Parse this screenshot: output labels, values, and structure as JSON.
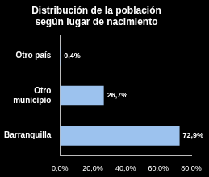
{
  "chart_data": {
    "type": "bar",
    "orientation": "horizontal",
    "title": "Distribución de la población según lugar de nacimiento",
    "categories": [
      "Otro país",
      "Otro municipio",
      "Barranquilla"
    ],
    "values": [
      0.4,
      26.7,
      72.9
    ],
    "value_labels": [
      "0,4%",
      "26,7%",
      "72,9%"
    ],
    "data_labels": true,
    "color": "#9cc2ee",
    "xlim": [
      0,
      80
    ],
    "xticks": [
      {
        "value": 0,
        "label": "0,0%"
      },
      {
        "value": 20,
        "label": "20,0%"
      },
      {
        "value": 40,
        "label": "40,0%"
      },
      {
        "value": 60,
        "label": "60,0%"
      },
      {
        "value": 80,
        "label": "80,0%"
      }
    ],
    "grid": false
  }
}
